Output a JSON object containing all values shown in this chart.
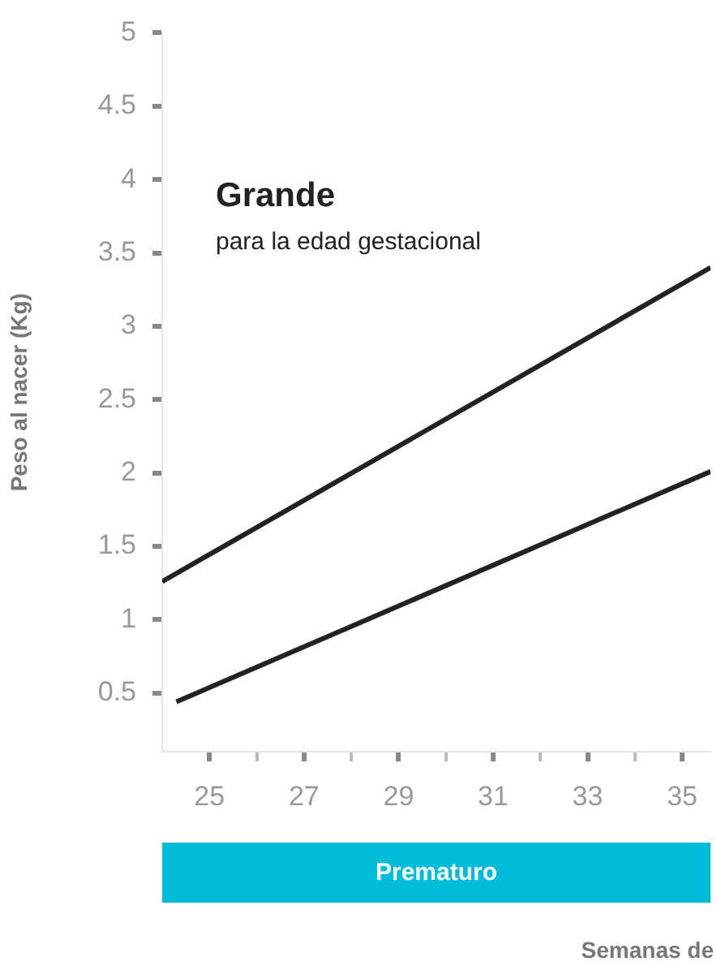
{
  "chart_data": {
    "type": "line",
    "ylabel": "Peso al nacer (Kg)",
    "annotations": [
      "Grande",
      "para la edad gestacional",
      "Prematuro",
      "Semanas de"
    ],
    "series": [
      {
        "color": "#222222",
        "x": [
          24,
          35.6
        ],
        "values": [
          1.26,
          3.4
        ]
      },
      {
        "color": "#222222",
        "x": [
          24.3,
          35.6
        ],
        "values": [
          0.44,
          2.01
        ]
      }
    ],
    "xlim": [
      24,
      35.6
    ],
    "xticks": [
      25,
      {
        "value": 26,
        "label": null
      },
      27,
      {
        "value": 28,
        "label": null
      },
      29,
      {
        "value": 30,
        "label": null
      },
      31,
      {
        "value": 32,
        "label": null
      },
      33,
      {
        "value": 34,
        "label": null
      },
      35
    ],
    "ylim": [
      0.1,
      5
    ],
    "yticks": [
      0.5,
      1,
      1.5,
      2,
      2.5,
      3,
      3.5,
      4,
      4.5,
      5
    ],
    "grid": false,
    "legend": false,
    "marker": "none",
    "line_style": "solid"
  }
}
